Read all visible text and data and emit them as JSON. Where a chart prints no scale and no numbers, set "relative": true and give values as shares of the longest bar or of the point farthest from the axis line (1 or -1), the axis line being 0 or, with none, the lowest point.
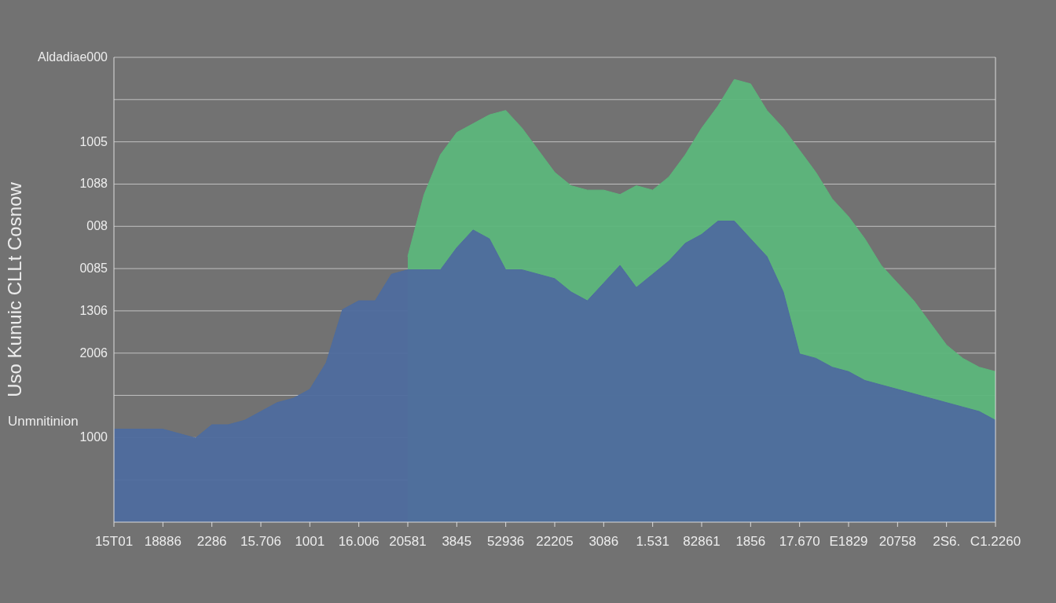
{
  "chart_data": {
    "type": "area",
    "relative": true,
    "ylabel": "Uso Kunuic CLLt Cosnow",
    "annotations": [
      "Unmnitinion",
      "Aldadiae000",
      "1005",
      "1088",
      "008",
      "0085",
      "1306",
      "2006",
      "1000"
    ],
    "categories": [
      "15T01",
      null,
      null,
      "18886",
      null,
      null,
      "2286",
      null,
      null,
      "15.706",
      null,
      null,
      "1001",
      null,
      null,
      "16.006",
      null,
      null,
      "20581",
      null,
      null,
      "3845",
      null,
      null,
      "52936",
      null,
      null,
      "22205",
      null,
      null,
      "3086",
      null,
      null,
      "1.531",
      null,
      null,
      "82861",
      null,
      null,
      "1856",
      null,
      null,
      "17.670",
      null,
      null,
      "E1829",
      null,
      null,
      "20758",
      null,
      null,
      "2S6.",
      null,
      null,
      "C1.2260"
    ],
    "grid": "y",
    "series": [
      {
        "color": "#5cb67b",
        "values": [
          null,
          null,
          null,
          null,
          null,
          null,
          null,
          null,
          null,
          null,
          null,
          null,
          null,
          null,
          null,
          null,
          null,
          null,
          0.6,
          0.74,
          0.83,
          0.88,
          0.9,
          0.92,
          0.93,
          0.89,
          0.84,
          0.79,
          0.76,
          0.75,
          0.75,
          0.74,
          0.76,
          0.75,
          0.78,
          0.83,
          0.89,
          0.94,
          1,
          0.99,
          0.93,
          0.89,
          0.84,
          0.79,
          0.73,
          0.69,
          0.64,
          0.58,
          0.54,
          0.5,
          0.45,
          0.4,
          0.37,
          0.35,
          0.34
        ]
      },
      {
        "color": "#4e6c9e",
        "values": [
          0.21,
          0.21,
          0.21,
          0.21,
          0.2,
          0.19,
          0.22,
          0.22,
          0.23,
          0.25,
          0.27,
          0.28,
          0.3,
          0.36,
          0.48,
          0.5,
          0.5,
          0.56,
          0.57,
          0.57,
          0.57,
          0.62,
          0.66,
          0.64,
          0.57,
          0.57,
          0.56,
          0.55,
          0.52,
          0.5,
          0.54,
          0.58,
          0.53,
          0.56,
          0.59,
          0.63,
          0.65,
          0.68,
          0.68,
          0.64,
          0.6,
          0.52,
          0.38,
          0.37,
          0.35,
          0.34,
          0.32,
          0.31,
          0.3,
          0.29,
          0.28,
          0.27,
          0.26,
          0.25,
          0.23
        ]
      }
    ]
  }
}
